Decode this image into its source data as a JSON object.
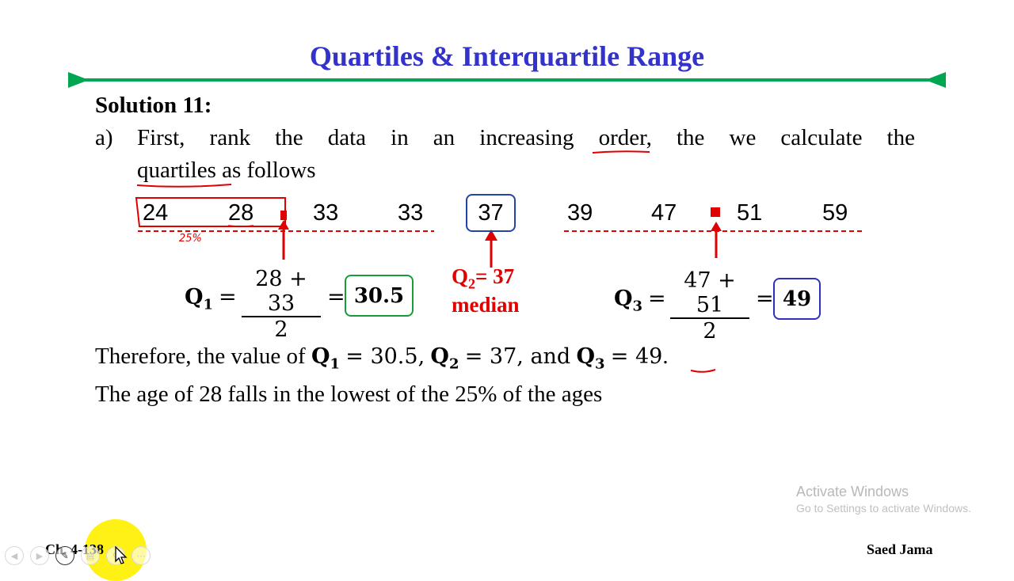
{
  "title": "Quartiles & Interquartile Range",
  "solution_heading": "Solution 11:",
  "part_a": {
    "label": "a)",
    "line1": "First, rank the data in an increasing order, the we calculate the",
    "line2": "quartiles as follows"
  },
  "data_values": [
    "24",
    "28",
    "33",
    "33",
    "37",
    "39",
    "47",
    "51",
    "59"
  ],
  "annotation_handwritten": "25%",
  "q1": {
    "label": "Q",
    "sub": "1",
    "numerator": "28 + 33",
    "denominator": "2",
    "result": "30.5"
  },
  "q2": {
    "label": "Q",
    "sub": "2",
    "value": "= 37",
    "caption": "median"
  },
  "q3": {
    "label": "Q",
    "sub": "3",
    "numerator": "47 + 51",
    "denominator": "2",
    "result": "49"
  },
  "therefore": {
    "prefix": "Therefore, the value of",
    "q1_val": "= 30.5,",
    "q2_val": "= 37, and",
    "q3_val": "= 49",
    "end": "."
  },
  "age_sentence": "The age of 28 falls in the lowest of the 25% of the ages",
  "footer": {
    "left": "Ch. 4-138",
    "right": "Saed Jama"
  },
  "watermark": {
    "line1": "Activate Windows",
    "line2": "Go to Settings to activate Windows."
  },
  "colors": {
    "title": "#3333cc",
    "rule": "#00a651",
    "red": "#e00000",
    "box_blue": "#2244aa",
    "box_green": "#1a9a3a",
    "box_navy": "#3030c0"
  },
  "toolbar_icons": [
    "prev-icon",
    "next-icon",
    "pen-icon",
    "slides-icon",
    "zoom-icon",
    "more-icon"
  ]
}
